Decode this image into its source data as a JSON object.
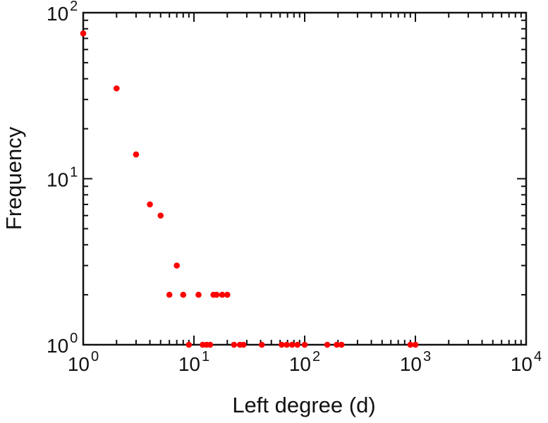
{
  "page": {
    "background": "#ffffff",
    "axis_color": "#111111",
    "text_color": "#111111"
  },
  "chart_data": {
    "type": "scatter",
    "title": "",
    "xlabel": "Left degree (d)",
    "ylabel": "Frequency",
    "x_scale": "log",
    "y_scale": "log",
    "xlim": [
      1,
      10000
    ],
    "ylim": [
      1,
      100
    ],
    "x_tick_exponents": [
      0,
      1,
      2,
      3,
      4
    ],
    "y_tick_exponents": [
      0,
      1,
      2
    ],
    "grid": "off",
    "legend": "none",
    "point_color": "#ff0000",
    "point_radius": 4.3,
    "points": [
      [
        1,
        75
      ],
      [
        2,
        35
      ],
      [
        3,
        14
      ],
      [
        4,
        7
      ],
      [
        5,
        6
      ],
      [
        6,
        2
      ],
      [
        7,
        3
      ],
      [
        8,
        2
      ],
      [
        9,
        1
      ],
      [
        11,
        2
      ],
      [
        12,
        1
      ],
      [
        13,
        1
      ],
      [
        14,
        1
      ],
      [
        15,
        2
      ],
      [
        16,
        2
      ],
      [
        18,
        2
      ],
      [
        20,
        2
      ],
      [
        23,
        1
      ],
      [
        26,
        1
      ],
      [
        28,
        1
      ],
      [
        41,
        1
      ],
      [
        62,
        1
      ],
      [
        69,
        1
      ],
      [
        77,
        1
      ],
      [
        86,
        1
      ],
      [
        100,
        1
      ],
      [
        160,
        1
      ],
      [
        195,
        1
      ],
      [
        215,
        1
      ],
      [
        900,
        1
      ],
      [
        1000,
        1
      ]
    ]
  }
}
